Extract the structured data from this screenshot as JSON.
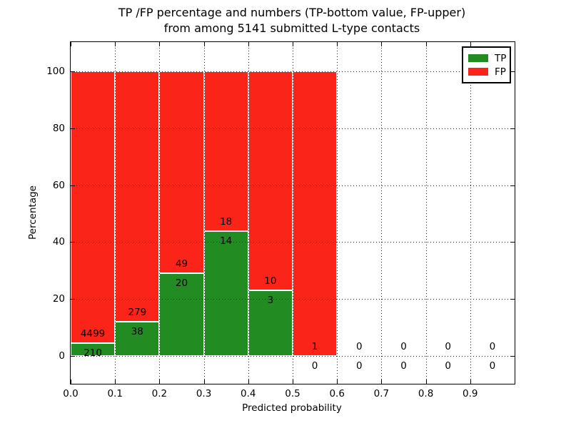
{
  "title": {
    "lines": [
      "TP /FP percentage and numbers (TP-bottom value, FP-upper)",
      "from among 5141 submitted L-type contacts"
    ]
  },
  "legend": {
    "position": "upper right",
    "items": [
      {
        "label": "TP",
        "color": "#228b22"
      },
      {
        "label": "FP",
        "color": "#fb2418"
      }
    ]
  },
  "chart_data": {
    "type": "bar",
    "stacked": true,
    "title": "TP /FP percentage and numbers (TP-bottom value, FP-upper)\nfrom among 5141 submitted L-type contacts",
    "xlabel": "Predicted probability",
    "ylabel": "Percentage",
    "bin_edges": [
      0.0,
      0.1,
      0.2,
      0.3,
      0.4,
      0.5,
      0.6,
      0.7,
      0.8,
      0.9,
      1.0
    ],
    "x_tick_labels": [
      "0.0",
      "0.1",
      "0.2",
      "0.3",
      "0.4",
      "0.5",
      "0.6",
      "0.7",
      "0.8",
      "0.9"
    ],
    "y_ticks": [
      0,
      20,
      40,
      60,
      80,
      100
    ],
    "xlim": [
      0.0,
      1.0
    ],
    "ylim": [
      -9.8,
      110.3
    ],
    "grid": "dotted",
    "grid_above_bars": true,
    "bar_label_rule": "TP count just below TP segment top, FP count just above it",
    "series": [
      {
        "name": "TP",
        "color": "#228b22",
        "counts": [
          210,
          38,
          20,
          14,
          3,
          0,
          0,
          0,
          0,
          0
        ],
        "percent": [
          4.5,
          12.0,
          29.0,
          43.8,
          23.1,
          0.0,
          0,
          0,
          0,
          0
        ]
      },
      {
        "name": "FP",
        "color": "#fb2418",
        "counts": [
          4499,
          279,
          49,
          18,
          10,
          1,
          0,
          0,
          0,
          0
        ],
        "percent": [
          95.5,
          88.0,
          71.0,
          56.2,
          76.9,
          100.0,
          0,
          0,
          0,
          0
        ]
      }
    ]
  }
}
